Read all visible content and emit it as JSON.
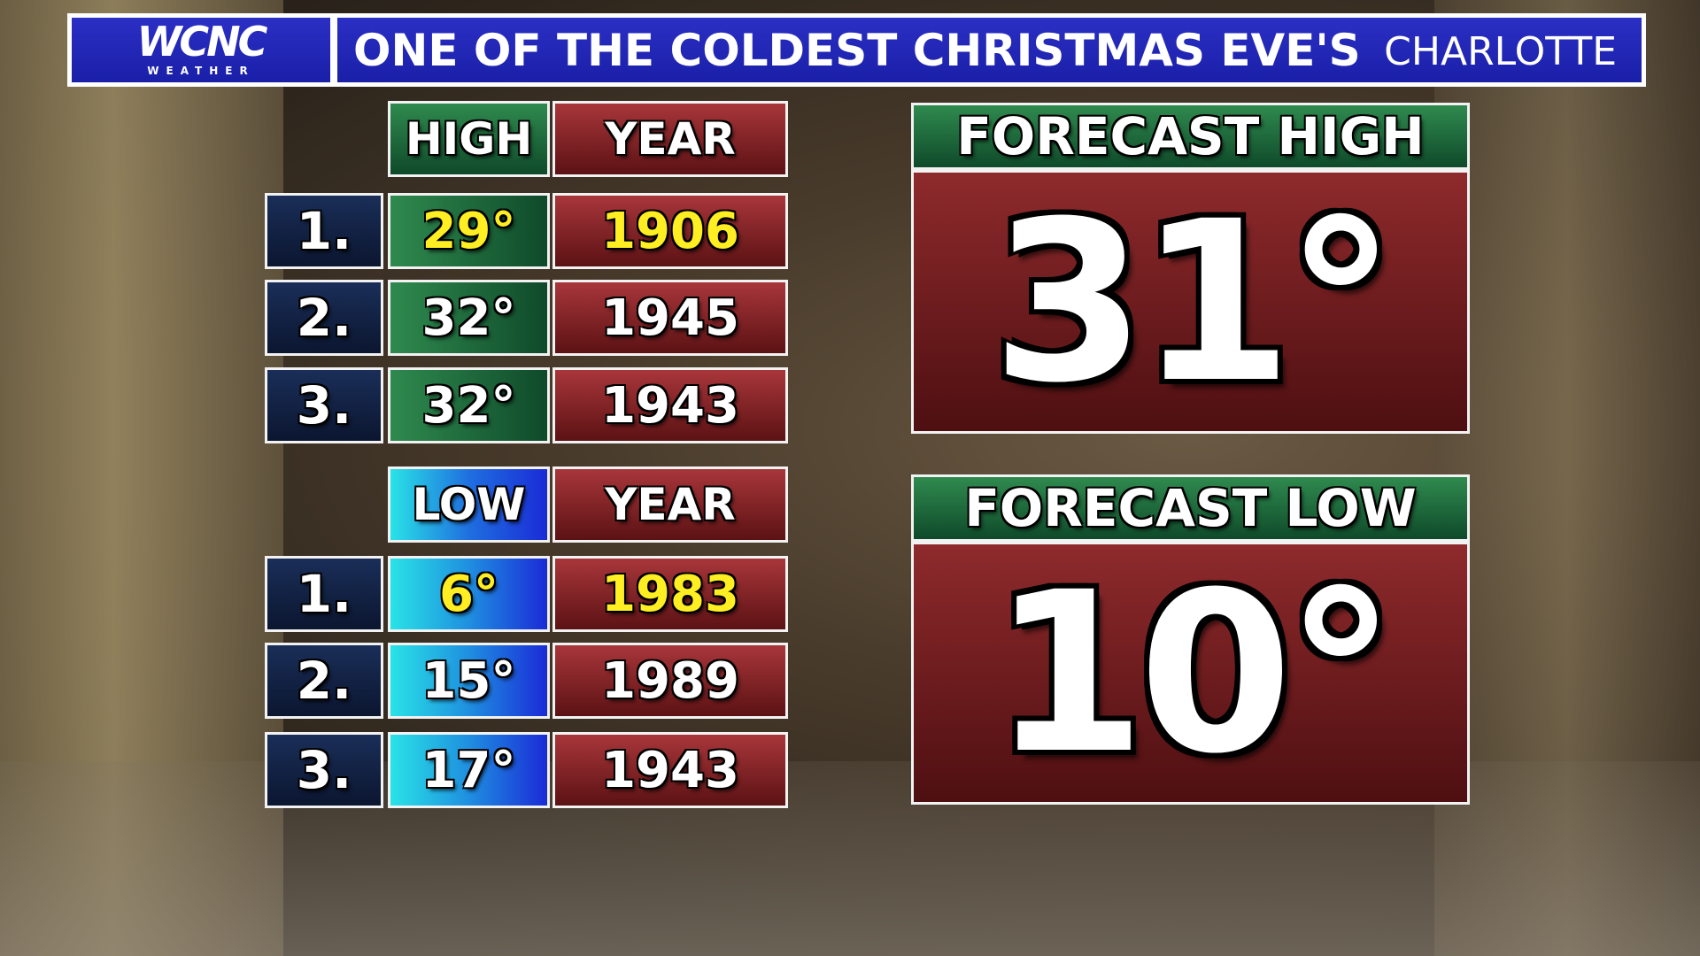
{
  "header": {
    "logo": "WCNC",
    "logo_sub": "WEATHER",
    "title": "ONE OF THE COLDEST CHRISTMAS EVE'S",
    "location": "CHARLOTTE"
  },
  "high_table": {
    "columns": [
      "HIGH",
      "YEAR"
    ],
    "rows": [
      [
        "1.",
        "29°",
        "1906"
      ],
      [
        "2.",
        "32°",
        "1945"
      ],
      [
        "3.",
        "32°",
        "1943"
      ]
    ]
  },
  "low_table": {
    "columns": [
      "LOW",
      "YEAR"
    ],
    "rows": [
      [
        "1.",
        "6°",
        "1983"
      ],
      [
        "2.",
        "15°",
        "1989"
      ],
      [
        "3.",
        "17°",
        "1943"
      ]
    ]
  },
  "forecast_high": {
    "label": "FORECAST HIGH",
    "value": "31°"
  },
  "forecast_low": {
    "label": "FORECAST LOW",
    "value": "10°"
  }
}
